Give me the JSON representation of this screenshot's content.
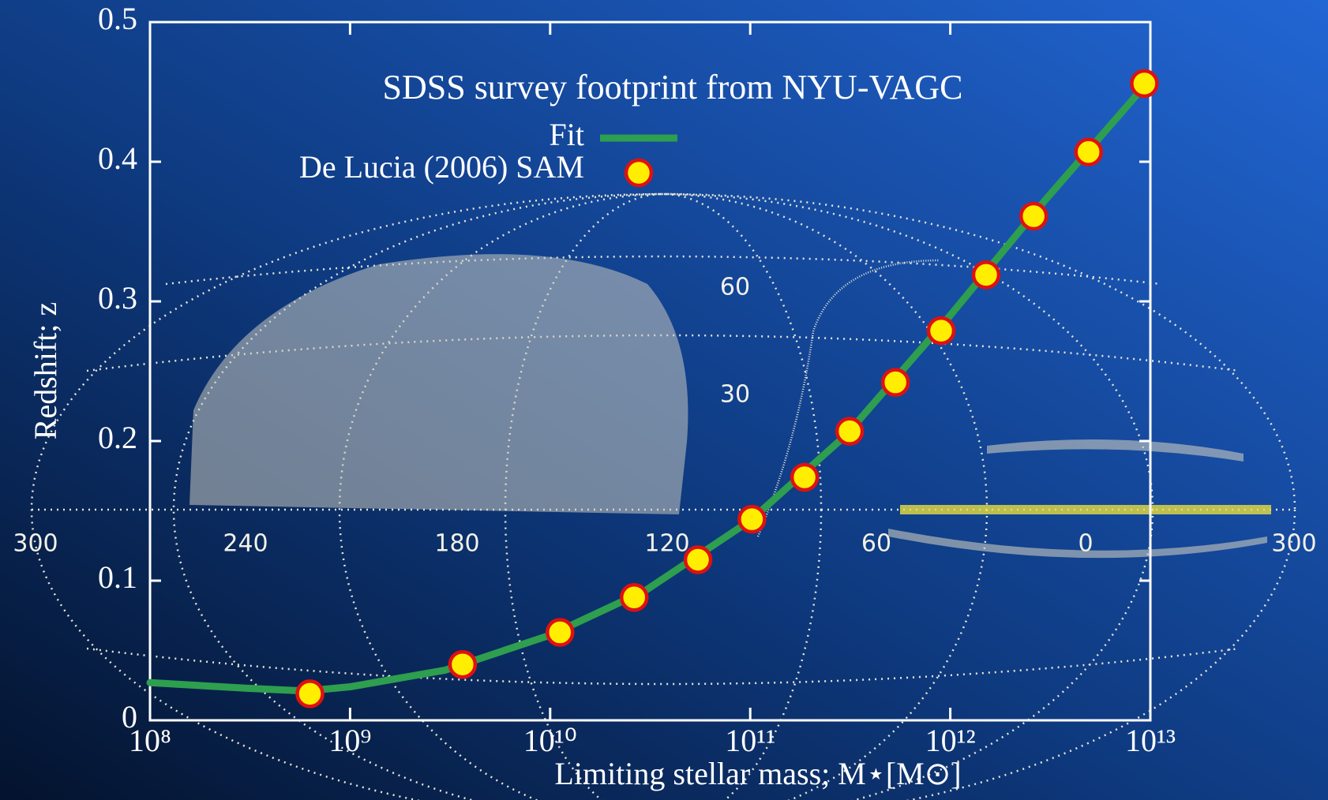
{
  "chart_data": {
    "type": "line",
    "title": "SDSS survey footprint from NYU-VAGC",
    "x_label": "Limiting stellar mass; M⋆[M⊙]",
    "y_label": "Redshift; z",
    "xscale": "log",
    "xlim": [
      100000000,
      10000000000000
    ],
    "ylim": [
      0,
      0.5
    ],
    "xticks": [
      {
        "value": 100000000,
        "label": "10⁸"
      },
      {
        "value": 1000000000,
        "label": "10⁹"
      },
      {
        "value": 10000000000,
        "label": "10¹⁰"
      },
      {
        "value": 100000000000,
        "label": "10¹¹"
      },
      {
        "value": 1000000000000,
        "label": "10¹²"
      },
      {
        "value": 10000000000000,
        "label": "10¹³"
      }
    ],
    "yticks": [
      0,
      0.1,
      0.2,
      0.3,
      0.4,
      0.5
    ],
    "legend": "top-left",
    "series": [
      {
        "name": "Fit",
        "color": "#2e9e4f",
        "style": "line",
        "x": [
          100000000,
          300000000,
          600000000,
          1000000000,
          3000000000,
          10000000000,
          30000000000,
          100000000000,
          300000000000,
          1000000000000,
          3000000000000,
          10000000000000
        ],
        "values": [
          0.027,
          0.023,
          0.021,
          0.024,
          0.036,
          0.061,
          0.093,
          0.143,
          0.204,
          0.29,
          0.373,
          0.459
        ]
      },
      {
        "name": "De Lucia (2006) SAM",
        "color": "#ffee00",
        "edge_color": "#e01010",
        "style": "marker",
        "x": [
          630000000,
          3650000000,
          11200000000,
          26300000000,
          54800000000,
          102000000000,
          187000000000,
          314000000000,
          532000000000,
          900000000000,
          1510000000000,
          2610000000000,
          4910000000000,
          9330000000000
        ],
        "values": [
          0.019,
          0.04,
          0.063,
          0.088,
          0.115,
          0.144,
          0.174,
          0.207,
          0.242,
          0.279,
          0.319,
          0.361,
          0.407,
          0.456
        ]
      }
    ],
    "background_labels": [
      "300",
      "240",
      "180",
      "120",
      "60",
      "0",
      "300",
      "60",
      "30"
    ]
  }
}
